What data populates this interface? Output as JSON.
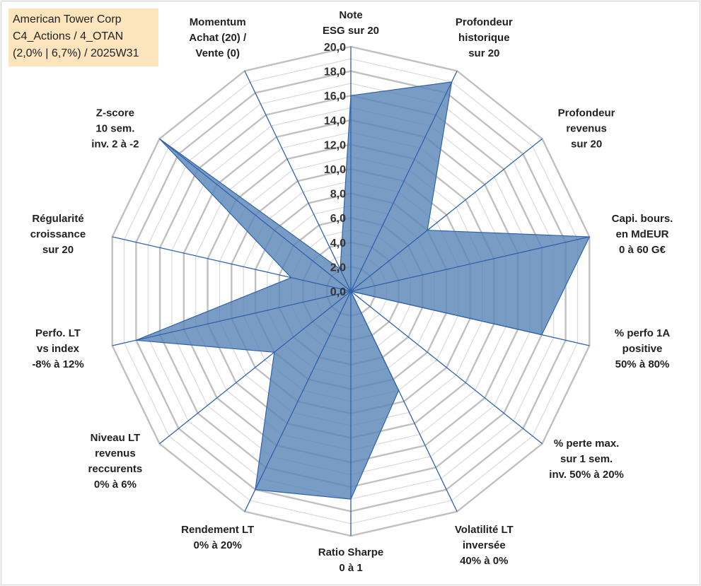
{
  "info_box": {
    "lines": [
      "American Tower Corp",
      "C4_Actions / 4_OTAN",
      "(2,0% | 6,7%) / 2025W31"
    ]
  },
  "chart_data": {
    "type": "radar",
    "title": "",
    "range": [
      0,
      20
    ],
    "tick_step": 2,
    "minor_ticks_per_step": 2,
    "tick_labels": [
      "0,0",
      "2,0",
      "4,0",
      "6,0",
      "8,0",
      "10,0",
      "12,0",
      "14,0",
      "16,0",
      "18,0",
      "20,0"
    ],
    "axes": [
      {
        "label": [
          "Note",
          "ESG sur 20"
        ],
        "value": 16
      },
      {
        "label": [
          "Profondeur",
          "historique",
          "sur 20"
        ],
        "value": 19
      },
      {
        "label": [
          "Profondeur",
          "revenus",
          "sur 20"
        ],
        "value": 8
      },
      {
        "label": [
          "Capi. bours.",
          "en MdEUR",
          "0 à 60 G€"
        ],
        "value": 20
      },
      {
        "label": [
          "% perfo 1A",
          "positive",
          "50% à 80%"
        ],
        "value": 16
      },
      {
        "label": [
          "% perte max.",
          "sur 1 sem.",
          "inv. 50% à 20%"
        ],
        "value": 0
      },
      {
        "label": [
          "Volatilité LT",
          "inversée",
          "40% à 0%"
        ],
        "value": 9
      },
      {
        "label": [
          "Ratio Sharpe",
          "0 à 1"
        ],
        "value": 17
      },
      {
        "label": [
          "Rendement LT",
          "0% à 20%"
        ],
        "value": 18
      },
      {
        "label": [
          "Niveau LT",
          "revenus",
          "reccurents",
          "0% à 6%"
        ],
        "value": 8
      },
      {
        "label": [
          "Perfo. LT",
          "vs index",
          "-8% à 12%"
        ],
        "value": 18
      },
      {
        "label": [
          "Régularité",
          "croissance",
          "sur 20"
        ],
        "value": 5
      },
      {
        "label": [
          "Z-score",
          "10 sem.",
          "inv. 2 à -2"
        ],
        "value": 20
      },
      {
        "label": [
          "Momentum",
          "Achat (20) /",
          "Vente (0)"
        ],
        "value": 2
      }
    ],
    "colors": {
      "fill": "#5b86b8",
      "stroke": "#2f62ad",
      "spokes": "#2f62ad",
      "major_grid": "#c0c0c0",
      "minor_grid": "#d9d9d9"
    },
    "grid": true,
    "legend": "none"
  }
}
